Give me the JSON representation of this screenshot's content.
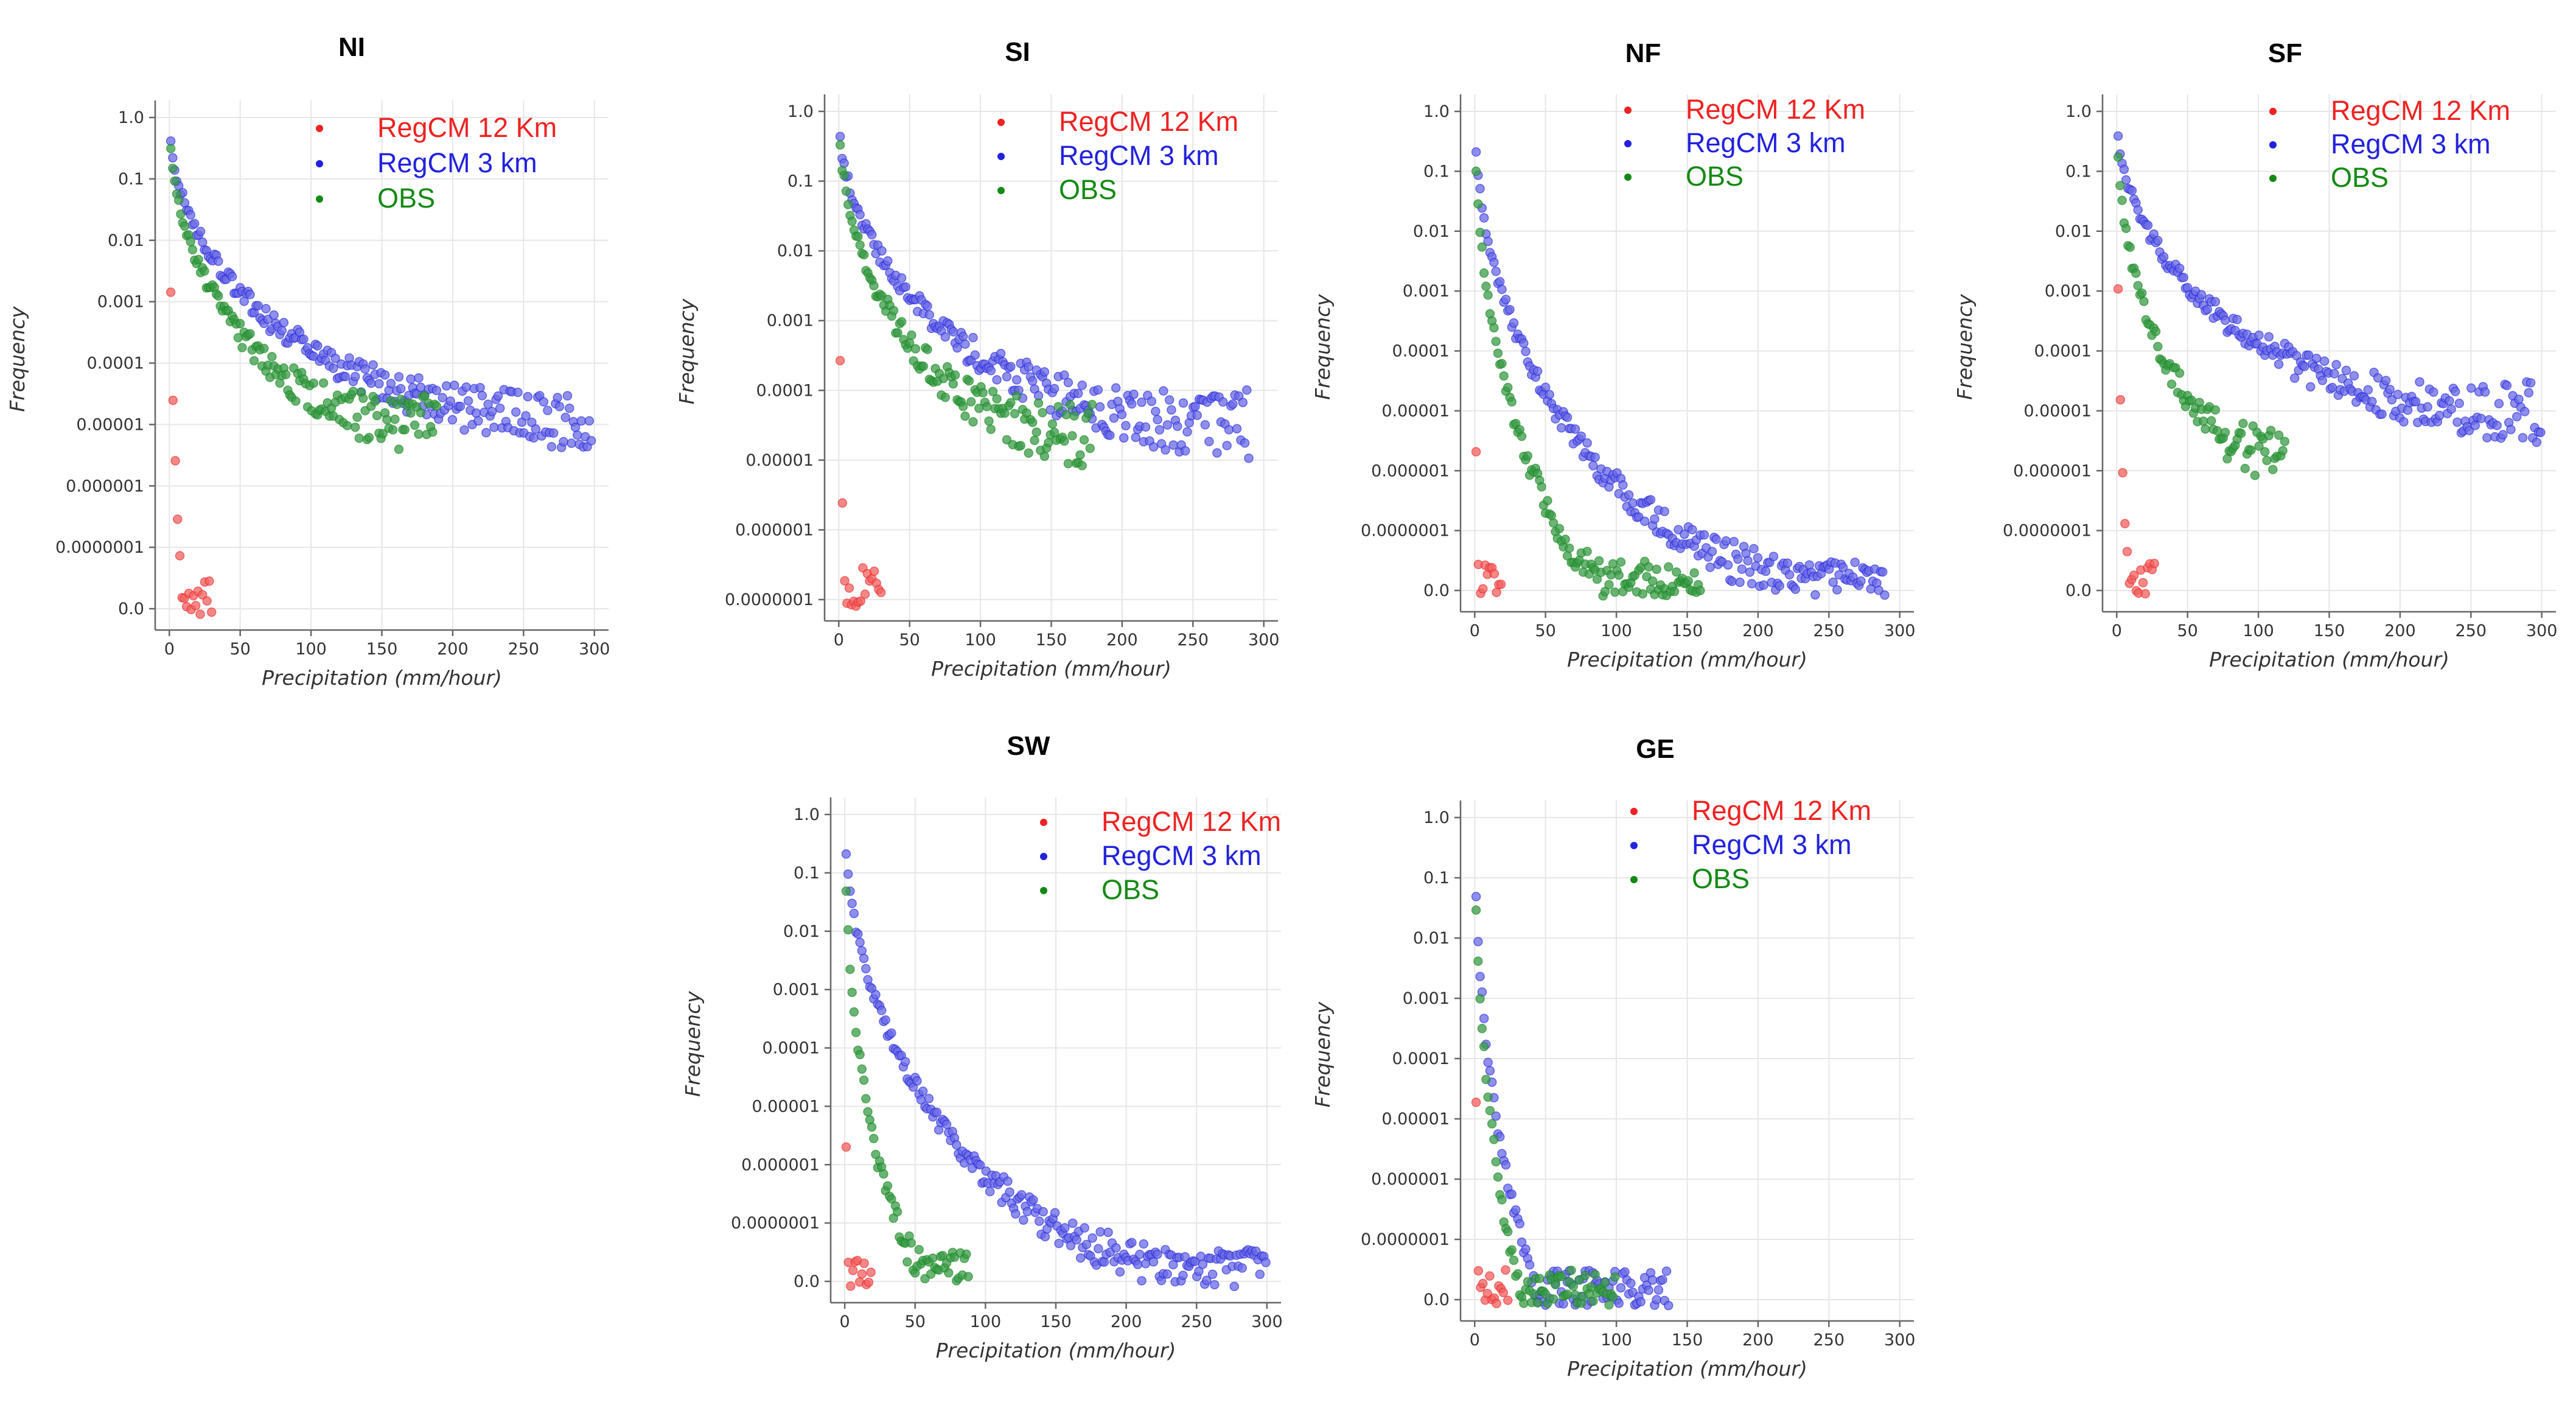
{
  "colors": {
    "regcm12": "#ee2222",
    "regcm3": "#2222dd",
    "obs": "#148a14",
    "regcm12_fill": "#f06060",
    "regcm3_fill": "#6a6ae6",
    "obs_fill": "#3a9a4a"
  },
  "legend": [
    "RegCM 12 Km",
    "RegCM 3 km",
    "OBS"
  ],
  "chart_data": [
    {
      "type": "scatter",
      "title": "NI",
      "xlabel": "Precipitation (mm/hour)",
      "ylabel": "Frequency",
      "xticks": [
        "0",
        "50",
        "100",
        "150",
        "200",
        "250",
        "300"
      ],
      "yticks": [
        "1.0",
        "0.1",
        "0.01",
        "0.001",
        "0.0001",
        "0.00001",
        "0.000001",
        "0.0000001",
        "0.0"
      ],
      "xlim": [
        -10,
        310
      ],
      "series": [
        {
          "name": "RegCM 12 Km",
          "tail_decades": 16,
          "x_end": 30
        },
        {
          "name": "RegCM 3 km",
          "tail_decades": 7.3,
          "x_end": 298
        },
        {
          "name": "OBS",
          "tail_decades": 7.5,
          "x_end": 190
        }
      ]
    },
    {
      "type": "scatter",
      "title": "SI",
      "xlabel": "Precipitation (mm/hour)",
      "ylabel": "Frequency",
      "xticks": [
        "0",
        "50",
        "100",
        "150",
        "200",
        "250",
        "300"
      ],
      "yticks": [
        "1.0",
        "0.1",
        "0.01",
        "0.001",
        "0.0001",
        "0.00001",
        "0.000001",
        "0.0000001"
      ],
      "xlim": [
        -10,
        310
      ],
      "series": [
        {
          "name": "RegCM 12 Km",
          "tail_decades": 20,
          "x_end": 30
        },
        {
          "name": "RegCM 3 km",
          "tail_decades": 6.7,
          "x_end": 290
        },
        {
          "name": "OBS",
          "tail_decades": 6.9,
          "x_end": 180
        }
      ]
    },
    {
      "type": "scatter",
      "title": "NF",
      "xlabel": "Precipitation (mm/hour)",
      "ylabel": "Frequency",
      "xticks": [
        "0",
        "50",
        "100",
        "150",
        "200",
        "250",
        "300"
      ],
      "yticks": [
        "1.0",
        "0.1",
        "0.01",
        "0.001",
        "0.0001",
        "0.00001",
        "0.000001",
        "0.0000001",
        "0.0"
      ],
      "xlim": [
        -10,
        310
      ],
      "series": [
        {
          "name": "RegCM 12 Km",
          "tail_decades": 26,
          "x_end": 20
        },
        {
          "name": "RegCM 3 km",
          "tail_decades": 12,
          "x_end": 290
        },
        {
          "name": "OBS",
          "tail_decades": 13,
          "x_end": 160
        }
      ]
    },
    {
      "type": "scatter",
      "title": "SF",
      "xlabel": "Precipitation (mm/hour)",
      "ylabel": "Frequency",
      "xticks": [
        "0",
        "50",
        "100",
        "150",
        "200",
        "250",
        "300"
      ],
      "yticks": [
        "1.0",
        "0.1",
        "0.01",
        "0.001",
        "0.0001",
        "0.00001",
        "0.000001",
        "0.0000001",
        "0.0"
      ],
      "xlim": [
        -10,
        310
      ],
      "series": [
        {
          "name": "RegCM 12 Km",
          "tail_decades": 16,
          "x_end": 28
        },
        {
          "name": "RegCM 3 km",
          "tail_decades": 7.5,
          "x_end": 300
        },
        {
          "name": "OBS",
          "tail_decades": 8.6,
          "x_end": 120
        }
      ]
    },
    {
      "type": "scatter",
      "title": "SW",
      "xlabel": "Precipitation (mm/hour)",
      "ylabel": "Frequency",
      "xticks": [
        "0",
        "50",
        "100",
        "150",
        "200",
        "250",
        "300"
      ],
      "yticks": [
        "1.0",
        "0.1",
        "0.01",
        "0.001",
        "0.0001",
        "0.00001",
        "0.000001",
        "0.0000001",
        "0.0"
      ],
      "xlim": [
        -10,
        310
      ],
      "series": [
        {
          "name": "RegCM 12 Km",
          "tail_decades": 26,
          "x_end": 20
        },
        {
          "name": "RegCM 3 km",
          "tail_decades": 12,
          "x_end": 300
        },
        {
          "name": "OBS",
          "tail_decades": 12.5,
          "x_end": 88
        }
      ]
    },
    {
      "type": "scatter",
      "title": "GE",
      "xlabel": "Precipitation (mm/hour)",
      "ylabel": "Frequency",
      "xticks": [
        "0",
        "50",
        "100",
        "150",
        "200",
        "250",
        "300"
      ],
      "yticks": [
        "1.0",
        "0.1",
        "0.01",
        "0.001",
        "0.0001",
        "0.00001",
        "0.000001",
        "0.0000001",
        "0.0"
      ],
      "xlim": [
        -10,
        310
      ],
      "series": [
        {
          "name": "RegCM 12 Km",
          "tail_decades": 24,
          "x_end": 25
        },
        {
          "name": "RegCM 3 km",
          "tail_decades": 15.5,
          "x_end": 137
        },
        {
          "name": "OBS",
          "tail_decades": 15.5,
          "x_end": 100
        }
      ]
    }
  ]
}
